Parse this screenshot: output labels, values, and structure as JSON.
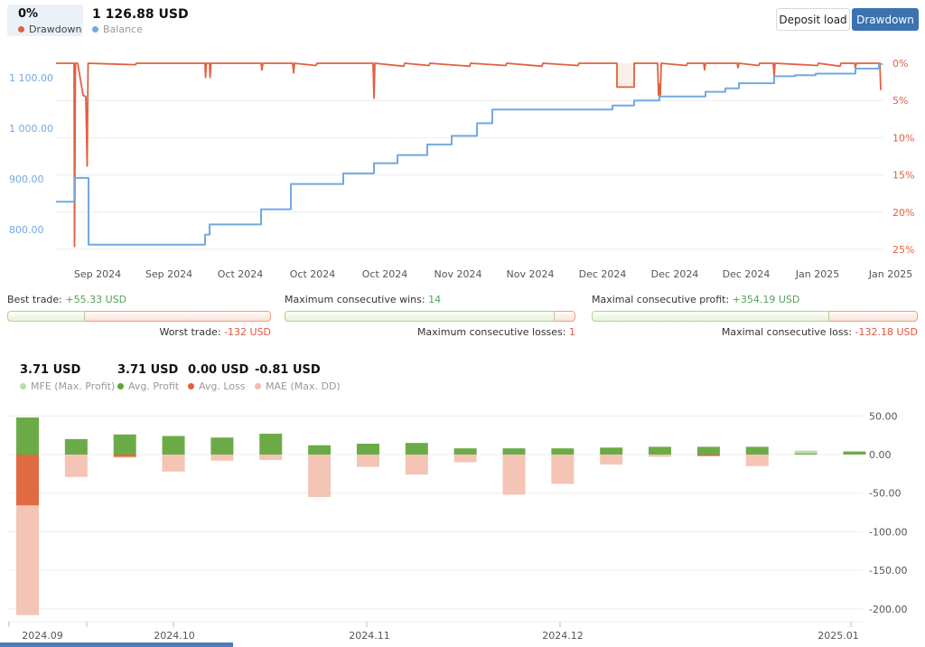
{
  "header": {
    "drawdown_badge": {
      "value": "0%",
      "label": "Drawdown",
      "dot_color": "#e0603c"
    },
    "balance": {
      "value": "1 126.88 USD",
      "label": "Balance",
      "dot_color": "#72a9e2"
    },
    "buttons": [
      {
        "label": "Deposit load",
        "active": false
      },
      {
        "label": "Drawdown",
        "active": true
      }
    ]
  },
  "stat_bars": [
    {
      "top_label": "Best trade:",
      "top_value": "+55.33 USD",
      "bottom_label": "Worst trade:",
      "bottom_value": "-132 USD",
      "green_pct": 29.5
    },
    {
      "top_label": "Maximum consecutive wins:",
      "top_value": "14",
      "bottom_label": "Maximum consecutive losses:",
      "bottom_value": "1",
      "green_pct": 93
    },
    {
      "top_label": "Maximal consecutive profit:",
      "top_value": "+354.19 USD",
      "bottom_label": "Maximal consecutive loss:",
      "bottom_value": "-132.18 USD",
      "green_pct": 72.8
    }
  ],
  "metrics": [
    {
      "value": "3.71 USD",
      "label": "MFE (Max. Profit)",
      "dot_color": "#bcdba4"
    },
    {
      "value": "3.71 USD",
      "label": "Avg. Profit",
      "dot_color": "#5ba736"
    },
    {
      "value": "0.00 USD",
      "label": "Avg. Loss",
      "dot_color": "#e0603c"
    },
    {
      "value": "-0.81 USD",
      "label": "MAE (Max. DD)",
      "dot_color": "#f2bca8"
    }
  ],
  "colors": {
    "balance_line": "#72a9e2",
    "drawdown_line": "#e2603f",
    "grid": "#ededed",
    "axis_text": "#555555",
    "bar_profit": "#6bab47",
    "bar_profit_light": "#bcdba4",
    "bar_loss": "#e06a42",
    "bar_mae": "#f4c4b4",
    "drawdown_region_fill": "#fbeee7",
    "tick": "#bbbbbb"
  },
  "chart_data": [
    {
      "type": "line",
      "title": "Balance / Drawdown curve",
      "left_axis": {
        "labels": [
          "1 100.00",
          "1 000.00",
          "900.00",
          "800.00"
        ],
        "values": [
          1100,
          1000,
          900,
          800
        ]
      },
      "right_axis": {
        "labels": [
          "0%",
          "5%",
          "10%",
          "15%",
          "20%",
          "25%"
        ],
        "values": [
          0,
          5,
          10,
          15,
          20,
          25
        ]
      },
      "x_axis": {
        "labels": [
          "Sep 2024",
          "Sep 2024",
          "Oct 2024",
          "Oct 2024",
          "Oct 2024",
          "Nov 2024",
          "Nov 2024",
          "Dec 2024",
          "Dec 2024",
          "Dec 2024",
          "Jan 2025",
          "Jan 2025"
        ],
        "centers": [
          108,
          187,
          266,
          346,
          426,
          507,
          587,
          667,
          747,
          826,
          905,
          986
        ]
      },
      "series": [
        {
          "name": "Balance",
          "axis": "left",
          "points": [
            [
              62,
              855
            ],
            [
              83,
              855
            ],
            [
              83,
              902
            ],
            [
              98,
              902
            ],
            [
              98,
              770
            ],
            [
              227,
              770
            ],
            [
              227,
              790
            ],
            [
              232,
              790
            ],
            [
              232,
              810
            ],
            [
              289,
              810
            ],
            [
              289,
              840
            ],
            [
              322,
              840
            ],
            [
              322,
              890
            ],
            [
              380,
              890
            ],
            [
              380,
              911
            ],
            [
              414,
              911
            ],
            [
              414,
              931
            ],
            [
              440,
              931
            ],
            [
              440,
              947
            ],
            [
              473,
              947
            ],
            [
              473,
              968
            ],
            [
              500,
              968
            ],
            [
              500,
              985
            ],
            [
              528,
              985
            ],
            [
              528,
              1010
            ],
            [
              545,
              1010
            ],
            [
              545,
              1037
            ],
            [
              678,
              1037
            ],
            [
              678,
              1045
            ],
            [
              702,
              1045
            ],
            [
              702,
              1055
            ],
            [
              730,
              1055
            ],
            [
              730,
              1063
            ],
            [
              781,
              1063
            ],
            [
              781,
              1072
            ],
            [
              803,
              1072
            ],
            [
              803,
              1079
            ],
            [
              818,
              1079
            ],
            [
              818,
              1089
            ],
            [
              857,
              1089
            ],
            [
              857,
              1103
            ],
            [
              880,
              1103
            ],
            [
              880,
              1105
            ],
            [
              903,
              1105
            ],
            [
              903,
              1108
            ],
            [
              947,
              1108
            ],
            [
              947,
              1118
            ],
            [
              973,
              1118
            ],
            [
              973,
              1127
            ],
            [
              977,
              1127
            ]
          ]
        },
        {
          "name": "Drawdown %",
          "axis": "right",
          "points": [
            [
              62,
              0
            ],
            [
              82,
              0
            ],
            [
              82.5,
              24.6
            ],
            [
              83.5,
              0
            ],
            [
              86,
              0
            ],
            [
              92,
              4.3
            ],
            [
              95,
              4.5
            ],
            [
              96.5,
              13.8
            ],
            [
              97.5,
              0
            ],
            [
              150,
              0.2
            ],
            [
              151,
              0
            ],
            [
              227,
              0
            ],
            [
              227.5,
              1.9
            ],
            [
              228.5,
              0
            ],
            [
              232,
              0
            ],
            [
              232.5,
              1.9
            ],
            [
              233.5,
              0
            ],
            [
              289,
              0
            ],
            [
              290,
              0.9
            ],
            [
              291,
              0
            ],
            [
              324,
              0
            ],
            [
              325,
              1.3
            ],
            [
              326,
              0
            ],
            [
              350,
              0.3
            ],
            [
              351,
              0
            ],
            [
              413,
              0
            ],
            [
              414,
              4.7
            ],
            [
              415,
              0
            ],
            [
              447,
              0.4
            ],
            [
              448,
              0
            ],
            [
              475,
              0.3
            ],
            [
              476,
              0
            ],
            [
              520,
              0.4
            ],
            [
              521,
              0
            ],
            [
              560,
              0.3
            ],
            [
              561,
              0
            ],
            [
              600,
              0.4
            ],
            [
              601,
              0
            ],
            [
              640,
              0.3
            ],
            [
              641,
              0
            ],
            [
              683,
              0
            ],
            [
              683,
              3.2
            ],
            [
              702,
              3.2
            ],
            [
              702,
              0
            ],
            [
              728,
              0
            ],
            [
              729,
              4.3
            ],
            [
              730,
              2.8
            ],
            [
              731,
              4.3
            ],
            [
              732,
              0
            ],
            [
              760,
              0.3
            ],
            [
              761,
              0
            ],
            [
              779,
              0
            ],
            [
              780,
              0.9
            ],
            [
              781,
              0
            ],
            [
              816,
              0
            ],
            [
              817,
              0.6
            ],
            [
              818,
              0
            ],
            [
              840,
              0.3
            ],
            [
              841,
              0
            ],
            [
              856,
              0
            ],
            [
              857,
              1.7
            ],
            [
              858,
              0
            ],
            [
              905,
              0.3
            ],
            [
              906,
              0
            ],
            [
              930,
              0.4
            ],
            [
              931,
              0
            ],
            [
              946,
              0
            ],
            [
              947,
              0.6
            ],
            [
              948,
              0
            ],
            [
              974,
              0
            ],
            [
              975,
              3.6
            ]
          ]
        }
      ],
      "drawdown_region": {
        "x": 683,
        "width": 19,
        "pct": 3.2
      }
    },
    {
      "type": "bar",
      "title": "Weekly profit / loss / MAE",
      "y_axis": {
        "labels": [
          "50.00",
          "0.00",
          "-50.00",
          "-100.00",
          "-150.00",
          "-200.00"
        ],
        "values": [
          50,
          0,
          -50,
          -100,
          -150,
          -200
        ]
      },
      "x_axis": {
        "labels": [
          "2024.09",
          "2024.10",
          "2024.11",
          "2024.12",
          "2025.01"
        ],
        "centers": [
          47,
          193,
          409,
          623,
          928
        ]
      },
      "ticks": [
        10,
        96,
        192,
        406,
        620,
        942
      ],
      "bars": [
        {
          "profit": 48,
          "loss": -66,
          "mae": -208
        },
        {
          "profit": 20,
          "mae": -29
        },
        {
          "profit": 26,
          "loss": -3,
          "mae": -4
        },
        {
          "profit": 24,
          "mae": -22
        },
        {
          "profit": 22,
          "mae": -8
        },
        {
          "profit": 27,
          "mae": -7
        },
        {
          "profit": 12,
          "mae": -55
        },
        {
          "profit": 14,
          "mae": -16
        },
        {
          "profit": 15,
          "mae": -26
        },
        {
          "profit": 8,
          "mae": -10
        },
        {
          "profit": 8,
          "mae": -52
        },
        {
          "profit": 8,
          "mae": -38
        },
        {
          "profit": 9,
          "mae": -13
        },
        {
          "profit": 10,
          "mae": -3
        },
        {
          "profit": 10,
          "loss": -2,
          "mae": -2
        },
        {
          "profit": 10,
          "mae": -15
        },
        {
          "profit": 5,
          "light": true,
          "mae": 0
        },
        {
          "profit": 4,
          "mae": 0
        }
      ]
    }
  ]
}
